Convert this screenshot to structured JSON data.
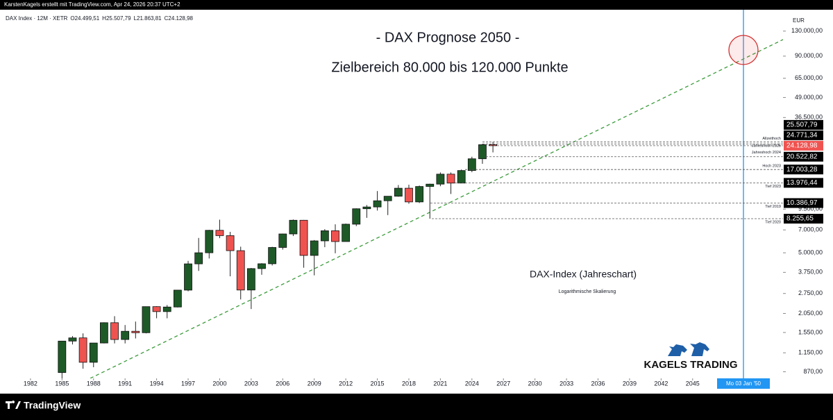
{
  "header": "KarstenKagels erstellt mit TradingView.com, Apr 24, 2026 20:37 UTC+2",
  "footer_brand": "TradingView",
  "chart_data": {
    "type": "candlestick",
    "symbol": "DAX Index · 12M · XETR",
    "last_bar_legend": [
      {
        "value": 24499.51,
        "label": "O24.499,51"
      },
      {
        "value": 25507.79,
        "label": "H25.507,79"
      },
      {
        "value": 21863.81,
        "label": "L21.863,81"
      },
      {
        "value": 24128.98,
        "label": "C24.128,98"
      }
    ],
    "title": "- DAX Prognose 2050 -",
    "subtitle": "Zielbereich 80.000 bis 120.000 Punkte",
    "annotations": [
      "DAX-Index (Jahreschart)",
      "Logarithmische Skalierung"
    ],
    "brand": "KAGELS TRADING",
    "currency": "EUR",
    "cursor_label": "Mo 03 Jan '50",
    "up_color": "#1e5a28",
    "down_color": "#ef5350",
    "x": [
      1985,
      1986,
      1987,
      1988,
      1989,
      1990,
      1991,
      1992,
      1993,
      1994,
      1995,
      1996,
      1997,
      1998,
      1999,
      2000,
      2001,
      2002,
      2003,
      2004,
      2005,
      2006,
      2007,
      2008,
      2009,
      2010,
      2011,
      2012,
      2013,
      2014,
      2015,
      2016,
      2017,
      2018,
      2019,
      2020,
      2021,
      2022,
      2023,
      2024,
      2025,
      2026
    ],
    "open": [
      860,
      1366,
      1432,
      1000,
      1328,
      1790,
      1398,
      1578,
      1545,
      2267,
      2107,
      2254,
      2889,
      4250,
      5002,
      6958,
      6434,
      5160,
      2893,
      3965,
      4256,
      5408,
      6597,
      8067,
      4810,
      5957,
      6914,
      5898,
      7612,
      9552,
      9806,
      10743,
      11481,
      12918,
      10559,
      13249,
      13719,
      15885,
      13924,
      16752,
      19909,
      24499.51
    ],
    "high": [
      1370,
      1470,
      1530,
      1330,
      1800,
      1970,
      1730,
      1820,
      2270,
      2280,
      2320,
      2900,
      4440,
      6220,
      7000,
      8136,
      6800,
      5470,
      4000,
      4290,
      5460,
      6630,
      8152,
      8100,
      6030,
      7080,
      7600,
      7680,
      9600,
      10090,
      12390,
      11480,
      13530,
      13600,
      13430,
      13800,
      16290,
      16285,
      17003.28,
      20522.82,
      24771.34,
      25507.79
    ],
    "low": [
      760,
      1300,
      910,
      930,
      1320,
      1320,
      1320,
      1420,
      1530,
      1910,
      1910,
      2240,
      2840,
      3830,
      4600,
      6200,
      3540,
      2520,
      2188,
      3620,
      4150,
      5240,
      6400,
      4015,
      3589,
      5430,
      4966,
      5900,
      7400,
      8355,
      9300,
      8700,
      11400,
      10280,
      10386.97,
      8255.65,
      13300,
      11863,
      13976.44,
      16345,
      18490,
      21863.81
    ],
    "close": [
      1366,
      1432,
      1000,
      1328,
      1790,
      1398,
      1578,
      1545,
      2267,
      2107,
      2254,
      2889,
      4250,
      5002,
      6958,
      6434,
      5160,
      2893,
      3965,
      4256,
      5408,
      6597,
      8067,
      4810,
      5957,
      6914,
      5898,
      7612,
      9552,
      9806,
      10743,
      11481,
      12918,
      10559,
      13249,
      13719,
      15885,
      13924,
      16752,
      19909,
      24490,
      24128.98
    ],
    "xlim": [
      1979.1,
      2053.6
    ],
    "xticks": [
      1982,
      1985,
      1988,
      1991,
      1994,
      1997,
      2000,
      2003,
      2006,
      2009,
      2012,
      2015,
      2018,
      2021,
      2024,
      2027,
      2030,
      2033,
      2036,
      2039,
      2042,
      2045
    ],
    "yscale": "log",
    "ylim": [
      790,
      178000
    ],
    "yticks": [
      {
        "value": 870,
        "label": "870,00"
      },
      {
        "value": 1150,
        "label": "1.150,00"
      },
      {
        "value": 1550,
        "label": "1.550,00"
      },
      {
        "value": 2050,
        "label": "2.050,00"
      },
      {
        "value": 2750,
        "label": "2.750,00"
      },
      {
        "value": 3750,
        "label": "3.750,00"
      },
      {
        "value": 5000,
        "label": "5.000,00"
      },
      {
        "value": 7000,
        "label": "7.000,00"
      },
      {
        "value": 9500,
        "label": "9.500,00"
      },
      {
        "value": 36500,
        "label": "36.500,00"
      },
      {
        "value": 49000,
        "label": "49.000,00"
      },
      {
        "value": 65000,
        "label": "65.000,00"
      },
      {
        "value": 90000,
        "label": "90.000,00"
      },
      {
        "value": 130000,
        "label": "130.000,00"
      }
    ],
    "price_levels": [
      {
        "value": 25507.79,
        "label": "25.507,79",
        "note": "Allzeithoch"
      },
      {
        "value": 24771.34,
        "label": "24.771,34",
        "note": "Jahreshoch 2025"
      },
      {
        "value": 24128.98,
        "label": "24.128,98"
      },
      {
        "value": 20522.82,
        "label": "20.522,82",
        "note": "Jahreshoch 2024"
      },
      {
        "value": 17003.28,
        "label": "17.003,28",
        "note": "Hoch 2023"
      },
      {
        "value": 13976.44,
        "label": "13.976,44",
        "note": "Tief 2023"
      },
      {
        "value": 10386.97,
        "label": "10.386,97",
        "note": "Tief 2019"
      },
      {
        "value": 8255.65,
        "label": "8.255,65",
        "note": "Tief 2020"
      }
    ]
  }
}
